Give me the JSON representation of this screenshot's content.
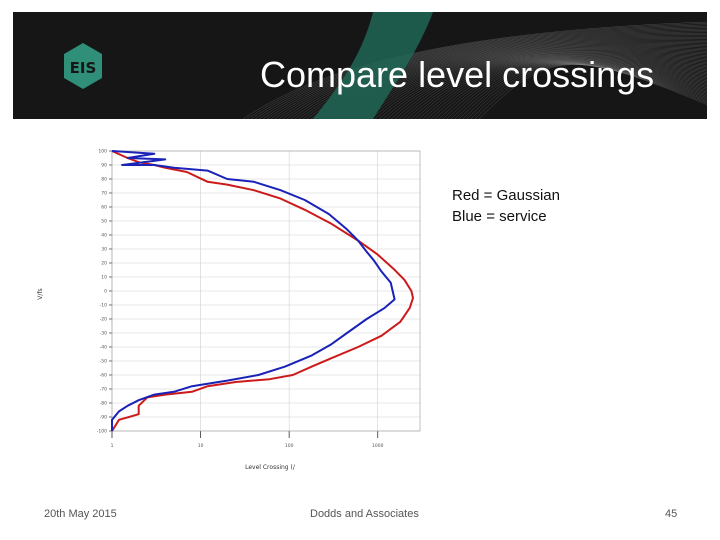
{
  "slide": {
    "title": "Compare level crossings",
    "legend_lines": [
      "Red = Gaussian",
      "Blue = service"
    ],
    "footer_date": "20th May 2015",
    "footer_org": "Dodds and Associates",
    "page_number": "45",
    "logo_text": "EIS"
  },
  "colors": {
    "banner": "#161616",
    "logo_green": "#2f8f78",
    "gaussian": "#cc1a1a",
    "service": "#1a22b8",
    "grid": "#d0d0d0"
  },
  "chart_data": {
    "type": "line",
    "xlabel": "Level Crossing (/",
    "ylabel": "V/fs",
    "x_scale": "log",
    "xlim": [
      1,
      3000
    ],
    "ylim": [
      -100,
      100
    ],
    "x_ticks": [
      "1",
      "10",
      "100",
      "1000"
    ],
    "y_ticks": [
      "100",
      "90",
      "80",
      "70",
      "60",
      "50",
      "40",
      "30",
      "20",
      "10",
      "0",
      "-10",
      "-20",
      "-30",
      "-40",
      "-50",
      "-60",
      "-70",
      "-80",
      "-90",
      "-100"
    ],
    "grid": true,
    "series": [
      {
        "color": "red",
        "points": [
          [
            1,
            100
          ],
          [
            1.5,
            95
          ],
          [
            2,
            92
          ],
          [
            3,
            90
          ],
          [
            4,
            88
          ],
          [
            7,
            85
          ],
          [
            12,
            78
          ],
          [
            20,
            76
          ],
          [
            40,
            72
          ],
          [
            80,
            66
          ],
          [
            150,
            58
          ],
          [
            300,
            48
          ],
          [
            600,
            36
          ],
          [
            1000,
            26
          ],
          [
            1500,
            16
          ],
          [
            2000,
            8
          ],
          [
            2400,
            0
          ],
          [
            2500,
            -5
          ],
          [
            2300,
            -12
          ],
          [
            1800,
            -22
          ],
          [
            1100,
            -32
          ],
          [
            600,
            -40
          ],
          [
            300,
            -48
          ],
          [
            180,
            -54
          ],
          [
            110,
            -60
          ],
          [
            60,
            -63
          ],
          [
            25,
            -65
          ],
          [
            12,
            -68
          ],
          [
            8,
            -72
          ],
          [
            4,
            -74
          ],
          [
            2.5,
            -76
          ],
          [
            2,
            -82
          ],
          [
            2,
            -88
          ],
          [
            1.2,
            -92
          ],
          [
            1,
            -100
          ]
        ]
      },
      {
        "color": "blue",
        "points": [
          [
            1,
            100
          ],
          [
            3,
            98
          ],
          [
            1.5,
            95
          ],
          [
            4,
            94
          ],
          [
            1.3,
            90
          ],
          [
            3,
            90
          ],
          [
            5,
            88
          ],
          [
            12,
            86
          ],
          [
            20,
            80
          ],
          [
            40,
            78
          ],
          [
            80,
            72
          ],
          [
            150,
            65
          ],
          [
            280,
            55
          ],
          [
            450,
            44
          ],
          [
            600,
            36
          ],
          [
            750,
            28
          ],
          [
            900,
            22
          ],
          [
            1100,
            14
          ],
          [
            1400,
            6
          ],
          [
            1550,
            -6
          ],
          [
            1200,
            -12
          ],
          [
            750,
            -20
          ],
          [
            450,
            -30
          ],
          [
            300,
            -38
          ],
          [
            180,
            -46
          ],
          [
            90,
            -54
          ],
          [
            45,
            -60
          ],
          [
            20,
            -64
          ],
          [
            8,
            -68
          ],
          [
            5,
            -72
          ],
          [
            3,
            -74
          ],
          [
            2,
            -78
          ],
          [
            1.5,
            -82
          ],
          [
            1.2,
            -86
          ],
          [
            1,
            -92
          ],
          [
            1,
            -100
          ]
        ]
      }
    ]
  }
}
